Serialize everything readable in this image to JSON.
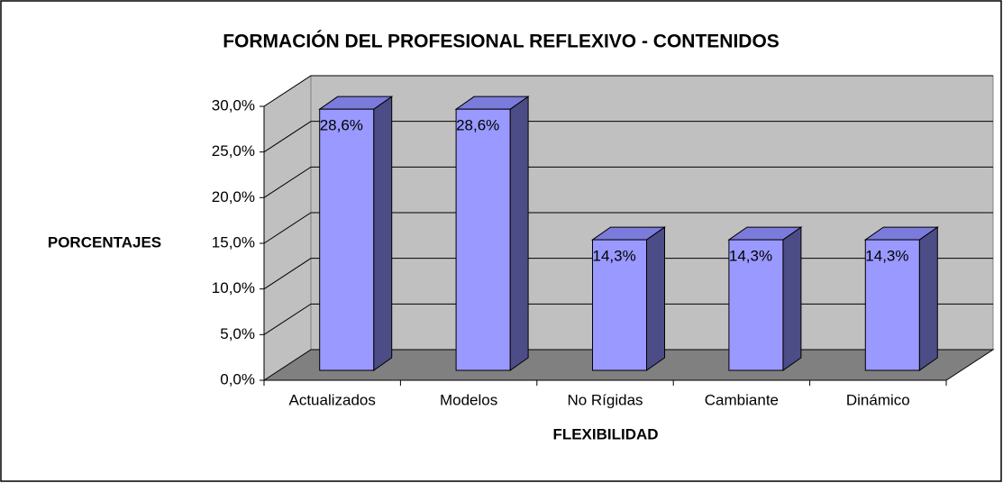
{
  "chart_data": {
    "type": "bar3d",
    "title": "FORMACIÓN DEL PROFESIONAL REFLEXIVO - CONTENIDOS",
    "x_label": "FLEXIBILIDAD",
    "y_label": "PORCENTAJES",
    "categories": [
      "Actualizados",
      "Modelos",
      "No Rígidas",
      "Cambiante",
      "Dinámico"
    ],
    "values": [
      28.6,
      28.6,
      14.3,
      14.3,
      14.3
    ],
    "value_labels": [
      "28,6%",
      "28,6%",
      "14,3%",
      "14,3%",
      "14,3%"
    ],
    "color": "#9999ff",
    "ylim": [
      0,
      30
    ],
    "yticks": [
      {
        "value": 0,
        "label": "0,0%"
      },
      {
        "value": 5,
        "label": "5,0%"
      },
      {
        "value": 10,
        "label": "10,0%"
      },
      {
        "value": 15,
        "label": "15,0%"
      },
      {
        "value": 20,
        "label": "20,0%"
      },
      {
        "value": 25,
        "label": "25,0%"
      },
      {
        "value": 30,
        "label": "30,0%"
      }
    ],
    "grid": true
  }
}
